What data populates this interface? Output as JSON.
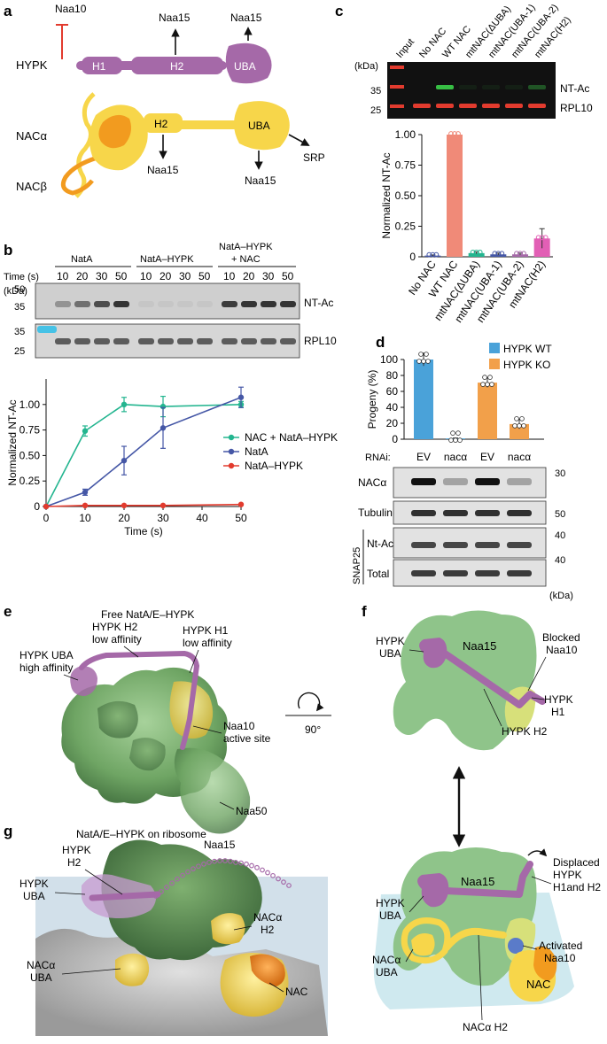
{
  "panels": {
    "a": "a",
    "b": "b",
    "c": "c",
    "d": "d",
    "e": "e",
    "f": "f",
    "g": "g"
  },
  "panel_a": {
    "hypk": "HYPK",
    "h1": "H1",
    "h2": "H2",
    "uba": "UBA",
    "naa10": "Naa10",
    "naa15_left": "Naa15",
    "naa15_right": "Naa15",
    "nac_alpha": "NACα",
    "nac_beta": "NACβ",
    "nac_h2": "H2",
    "nac_uba": "UBA",
    "nac_naa15_1": "Naa15",
    "nac_naa15_2": "Naa15",
    "srp": "SRP"
  },
  "panel_b": {
    "groups": [
      "NatA",
      "NatA–HYPK",
      "NatA–HYPK",
      "+ NAC"
    ],
    "time_label": "Time (s)",
    "kda": "(kDa)",
    "times": [
      "10",
      "20",
      "30",
      "50",
      "10",
      "20",
      "30",
      "50",
      "10",
      "20",
      "30",
      "50"
    ],
    "mw_top": [
      "50",
      "35"
    ],
    "mw_bottom": [
      "35",
      "25"
    ],
    "band_top": "NT-Ac",
    "band_bottom": "RPL10"
  },
  "panel_c": {
    "kda": "(kDa)",
    "lanes": [
      "Input",
      "No NAC",
      "WT NAC",
      "mtNAC(ΔUBA)",
      "mtNAC(UBA-1)",
      "mtNAC(UBA-2)",
      "mtNAC(H2)"
    ],
    "mw": [
      "35",
      "25"
    ],
    "band_top": "NT-Ac",
    "band_bottom": "RPL10"
  },
  "panel_d": {
    "legend_wt": "HYPK WT",
    "legend_ko": "HYPK KO",
    "rnai": "RNAi:",
    "kda": "(kDa)",
    "blots": [
      "NACα",
      "Tubulin",
      "Nt-Ac",
      "Total"
    ],
    "snap25": "SNAP25",
    "mw": [
      "30",
      "50",
      "40",
      "40"
    ]
  },
  "panel_e": {
    "title": "Free NatA/E–HYPK",
    "uba": "HYPK UBA",
    "uba2": "high affinity",
    "h2": "HYPK H2",
    "h2b": "low affinity",
    "h1": "HYPK H1",
    "h1b": "low affinity",
    "naa10": "Naa10",
    "naa10b": "active site",
    "naa50": "Naa50",
    "rot": "90°"
  },
  "panel_f": {
    "top_naa15": "Naa15",
    "top_uba": "HYPK",
    "top_uba2": "UBA",
    "blocked": "Blocked",
    "blocked2": "Naa10",
    "h1": "HYPK",
    "h1b": "H1",
    "h2": "HYPK H2",
    "bot_naa15": "Naa15",
    "bot_uba": "HYPK",
    "bot_uba2": "UBA",
    "displaced": "Displaced",
    "displaced2": "HYPK",
    "displaced3": "H1and H2",
    "activated": "Activated",
    "activated2": "Naa10",
    "nac_uba": "NACα",
    "nac_uba2": "UBA",
    "nac": "NAC",
    "nac_h2": "NACα H2"
  },
  "panel_g": {
    "title": "NatA/E–HYPK on ribosome",
    "h2": "HYPK",
    "h2b": "H2",
    "naa15": "Naa15",
    "uba": "HYPK",
    "uba2": "UBA",
    "nac_h2": "NACα",
    "nac_h2b": "H2",
    "nac_uba": "NACα",
    "nac_uba2": "UBA",
    "nac": "NAC"
  },
  "colors": {
    "hypk": "#a569a8",
    "nac_yellow": "#f7d64a",
    "nac_orange": "#f29b1f",
    "naa15_green": "#8fc48a",
    "naa10_yellow": "#d7e07a",
    "red": "#e23b2e",
    "teal": "#23b58f",
    "blue": "#4557a6",
    "salmon": "#f08a78",
    "pink": "#e25fb5",
    "wt_blue": "#4aa2d9",
    "ko_orange": "#f2a04a"
  },
  "chart_data": [
    {
      "id": "b-plot",
      "type": "line",
      "title": "",
      "xlabel": "Time (s)",
      "ylabel": "Normalized NT-Ac",
      "xlim": [
        0,
        50
      ],
      "ylim": [
        0,
        1.25
      ],
      "xticks": [
        0,
        10,
        20,
        30,
        40,
        50
      ],
      "yticks": [
        0,
        0.25,
        0.5,
        0.75,
        1.0
      ],
      "ytick_labels": [
        "0",
        "0.25",
        "0.50",
        "0.75",
        "1.00"
      ],
      "legend_position": "right",
      "series": [
        {
          "name": "NAC + NatA–HYPK",
          "color": "#23b58f",
          "x": [
            0,
            10,
            20,
            30,
            50
          ],
          "y": [
            0,
            0.74,
            1.0,
            0.98,
            1.0
          ],
          "err": [
            0,
            0.05,
            0.07,
            0.1,
            0.03
          ]
        },
        {
          "name": "NatA",
          "color": "#4557a6",
          "x": [
            0,
            10,
            20,
            30,
            50
          ],
          "y": [
            0,
            0.14,
            0.45,
            0.77,
            1.07
          ],
          "err": [
            0,
            0.03,
            0.14,
            0.2,
            0.1
          ]
        },
        {
          "name": "NatA–HYPK",
          "color": "#e23b2e",
          "x": [
            0,
            10,
            20,
            30,
            50
          ],
          "y": [
            0,
            0.01,
            0.01,
            0.01,
            0.02
          ],
          "err": [
            0,
            0,
            0,
            0,
            0
          ]
        }
      ]
    },
    {
      "id": "c-bar",
      "type": "bar",
      "title": "",
      "ylabel": "Normalized NT-Ac",
      "ylim": [
        0,
        1.0
      ],
      "yticks": [
        0,
        0.25,
        0.5,
        0.75,
        1.0
      ],
      "ytick_labels": [
        "0",
        "0.25",
        "0.50",
        "0.75",
        "1.00"
      ],
      "categories": [
        "No NAC",
        "WT NAC",
        "mtNAC(ΔUBA)",
        "mtNAC(UBA-1)",
        "mtNAC(UBA-2)",
        "mtNAC(H2)"
      ],
      "values": [
        0.01,
        1.0,
        0.03,
        0.02,
        0.02,
        0.15
      ],
      "errors": [
        0.005,
        0,
        0.01,
        0.01,
        0.01,
        0.08
      ],
      "colors": [
        "#4557a6",
        "#f08a78",
        "#23b58f",
        "#4557a6",
        "#a569a8",
        "#e25fb5"
      ]
    },
    {
      "id": "d-bar",
      "type": "bar",
      "title": "",
      "ylabel": "Progeny (%)",
      "ylim": [
        0,
        100
      ],
      "yticks": [
        0,
        20,
        40,
        60,
        80,
        100
      ],
      "categories": [
        "EV",
        "nacα",
        "EV",
        "nacα"
      ],
      "values": [
        100,
        1,
        71,
        19
      ],
      "errors": [
        8,
        0.5,
        6,
        6
      ],
      "colors": [
        "#4aa2d9",
        "#4aa2d9",
        "#f2a04a",
        "#f2a04a"
      ],
      "legend": [
        "HYPK WT",
        "HYPK KO"
      ],
      "legend_position": "top-right"
    }
  ]
}
